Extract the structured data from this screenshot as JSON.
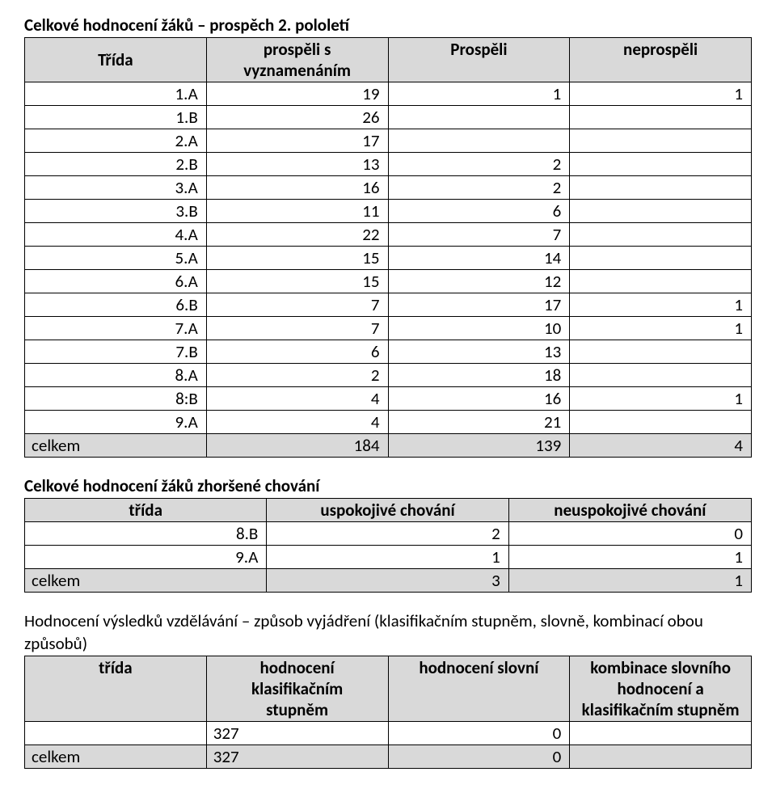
{
  "colors": {
    "header_bg": "#d9d9d9",
    "border": "#000000",
    "text": "#000000",
    "page_bg": "#ffffff"
  },
  "font": {
    "family": "Calibri",
    "size_pt": 16,
    "heading_weight": "bold"
  },
  "section1": {
    "heading": "Celkové hodnocení žáků – prospěch 2. pololetí",
    "headers": {
      "col1": "Třída",
      "col2_line1": "prospěli s",
      "col2_line2": "vyznamenáním",
      "col3": "Prospěli",
      "col4": "neprospěli"
    },
    "rows": [
      {
        "trida": "1.A",
        "c2": "19",
        "c3": "1",
        "c4": "1"
      },
      {
        "trida": "1.B",
        "c2": "26",
        "c3": "",
        "c4": ""
      },
      {
        "trida": "2.A",
        "c2": "17",
        "c3": "",
        "c4": ""
      },
      {
        "trida": "2.B",
        "c2": "13",
        "c3": "2",
        "c4": ""
      },
      {
        "trida": "3.A",
        "c2": "16",
        "c3": "2",
        "c4": ""
      },
      {
        "trida": "3.B",
        "c2": "11",
        "c3": "6",
        "c4": ""
      },
      {
        "trida": "4.A",
        "c2": "22",
        "c3": "7",
        "c4": ""
      },
      {
        "trida": "5.A",
        "c2": "15",
        "c3": "14",
        "c4": ""
      },
      {
        "trida": "6.A",
        "c2": "15",
        "c3": "12",
        "c4": ""
      },
      {
        "trida": "6.B",
        "c2": "7",
        "c3": "17",
        "c4": "1"
      },
      {
        "trida": "7.A",
        "c2": "7",
        "c3": "10",
        "c4": "1"
      },
      {
        "trida": "7.B",
        "c2": "6",
        "c3": "13",
        "c4": ""
      },
      {
        "trida": "8.A",
        "c2": "2",
        "c3": "18",
        "c4": ""
      },
      {
        "trida": "8:B",
        "c2": "4",
        "c3": "16",
        "c4": "1"
      },
      {
        "trida": "9.A",
        "c2": "4",
        "c3": "21",
        "c4": ""
      }
    ],
    "total": {
      "label": "celkem",
      "c2": "184",
      "c3": "139",
      "c4": "4"
    }
  },
  "section2": {
    "heading": "Celkové hodnocení žáků zhoršené chování",
    "headers": {
      "col1": "třída",
      "col2": "uspokojivé chování",
      "col3": "neuspokojivé chování"
    },
    "rows": [
      {
        "trida": "8.B",
        "c2": "2",
        "c3": "0"
      },
      {
        "trida": "9.A",
        "c2": "1",
        "c3": "1"
      }
    ],
    "total": {
      "label": "celkem",
      "c2": "3",
      "c3": "1"
    }
  },
  "section3": {
    "heading_line1": "Hodnocení výsledků vzdělávání – způsob vyjádření (klasifikačním stupněm, slovně, kombinací obou",
    "heading_line2": "způsobů)",
    "headers": {
      "col1": "třída",
      "col2_line1": "hodnocení",
      "col2_line2": "klasifikačním",
      "col2_line3": "stupněm",
      "col3": "hodnocení slovní",
      "col4_line1": "kombinace slovního",
      "col4_line2": "hodnocení a",
      "col4_line3": "klasifikačním stupněm"
    },
    "rows": [
      {
        "trida": "",
        "c2": "327",
        "c3": "0",
        "c4": ""
      }
    ],
    "total": {
      "label": "celkem",
      "c2": "327",
      "c3": "0",
      "c4": ""
    }
  }
}
